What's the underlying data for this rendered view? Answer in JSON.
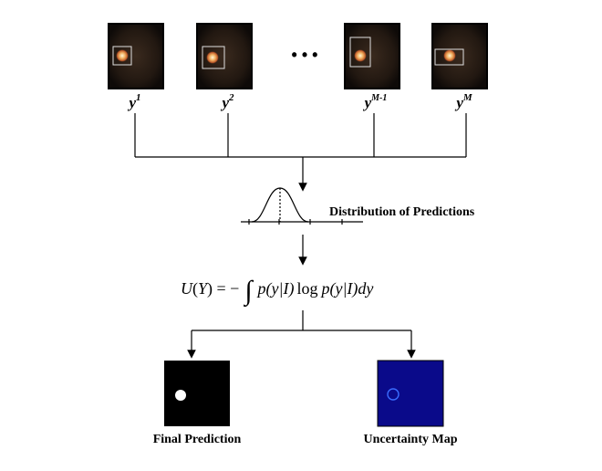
{
  "samples": [
    {
      "base": "y",
      "sup": "1"
    },
    {
      "base": "y",
      "sup": "2"
    },
    {
      "base": "y",
      "sup": "M-1"
    },
    {
      "base": "y",
      "sup": "M"
    }
  ],
  "ellipsis": "• • •",
  "distribution_label": "Distribution of Predictions",
  "equation": {
    "lhs_func": "U",
    "lhs_arg": "Y",
    "equals_minus": " = −",
    "integral": "∫",
    "p1": "p",
    "arg1": "(y|I)",
    "log": "log",
    "p2": "p",
    "arg2": "(y|I)dy"
  },
  "outputs": {
    "final_label": "Final Prediction",
    "uncertainty_label": "Uncertainty Map"
  },
  "colors": {
    "fundus_bg": "#1a1410",
    "uncertainty_bg": "#0a0a8a",
    "uncertainty_ring": "#3a6cff",
    "box": "#e0e0e0"
  }
}
